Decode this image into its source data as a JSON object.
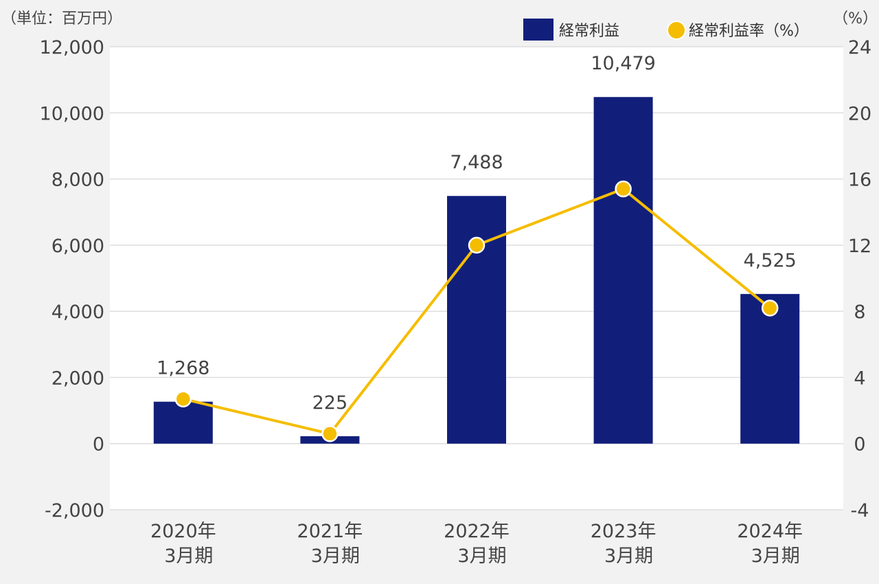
{
  "chart_data": {
    "type": "bar",
    "title": "",
    "unit_left": "（単位：百万円）",
    "unit_right": "（%）",
    "categories": [
      [
        "2020年",
        "3月期"
      ],
      [
        "2021年",
        "3月期"
      ],
      [
        "2022年",
        "3月期"
      ],
      [
        "2023年",
        "3月期"
      ],
      [
        "2024年",
        "3月期"
      ]
    ],
    "series": [
      {
        "name": "経常利益",
        "type": "bar",
        "axis": "left",
        "color": "#111f7b",
        "values": [
          1268,
          225,
          7488,
          10479,
          4525
        ],
        "labels": [
          "1,268",
          "225",
          "7,488",
          "10,479",
          "4,525"
        ]
      },
      {
        "name": "経常利益率（%）",
        "type": "line",
        "axis": "right",
        "color": "#f5bd00",
        "values": [
          2.7,
          0.6,
          12.0,
          15.4,
          8.2
        ]
      }
    ],
    "y_left": {
      "min": -2000,
      "max": 12000,
      "ticks": [
        -2000,
        0,
        2000,
        4000,
        6000,
        8000,
        10000,
        12000
      ],
      "tick_labels": [
        "-2,000",
        "0",
        "2,000",
        "4,000",
        "6,000",
        "8,000",
        "10,000",
        "12,000"
      ]
    },
    "y_right": {
      "min": -4,
      "max": 24,
      "ticks": [
        -4,
        0,
        4,
        8,
        12,
        16,
        20,
        24
      ],
      "tick_labels": [
        "-4",
        "0",
        "4",
        "8",
        "12",
        "16",
        "20",
        "24"
      ]
    },
    "grid": true,
    "legend_position": "top-right"
  }
}
